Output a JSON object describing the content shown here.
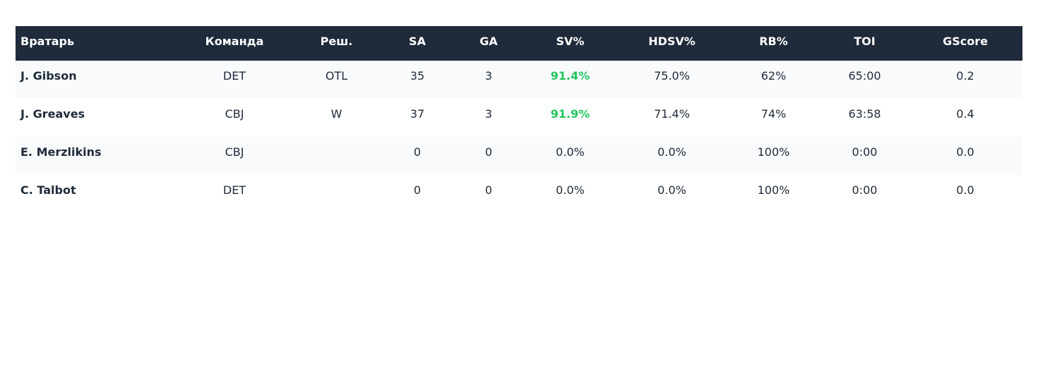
{
  "colors": {
    "header_bg": "#1f2a3a",
    "text": "#1f2a3a",
    "highlight": "#22c55e",
    "stripe": "#f8fafc"
  },
  "table": {
    "headers": [
      "Вратарь",
      "Команда",
      "Реш.",
      "SA",
      "GA",
      "SV%",
      "HDSV%",
      "RB%",
      "TOI",
      "GScore"
    ],
    "rows": [
      {
        "goalie": "J. Gibson",
        "team": "DET",
        "decision": "OTL",
        "sa": "35",
        "ga": "3",
        "sv_pct": "91.4%",
        "hdsv_pct": "75.0%",
        "rb_pct": "62%",
        "toi": "65:00",
        "gscore": "0.2",
        "sv_highlight": true
      },
      {
        "goalie": "J. Greaves",
        "team": "CBJ",
        "decision": "W",
        "sa": "37",
        "ga": "3",
        "sv_pct": "91.9%",
        "hdsv_pct": "71.4%",
        "rb_pct": "74%",
        "toi": "63:58",
        "gscore": "0.4",
        "sv_highlight": true
      },
      {
        "goalie": "E. Merzlikins",
        "team": "CBJ",
        "decision": "",
        "sa": "0",
        "ga": "0",
        "sv_pct": "0.0%",
        "hdsv_pct": "0.0%",
        "rb_pct": "100%",
        "toi": "0:00",
        "gscore": "0.0",
        "sv_highlight": false
      },
      {
        "goalie": "C. Talbot",
        "team": "DET",
        "decision": "",
        "sa": "0",
        "ga": "0",
        "sv_pct": "0.0%",
        "hdsv_pct": "0.0%",
        "rb_pct": "100%",
        "toi": "0:00",
        "gscore": "0.0",
        "sv_highlight": false
      }
    ]
  }
}
